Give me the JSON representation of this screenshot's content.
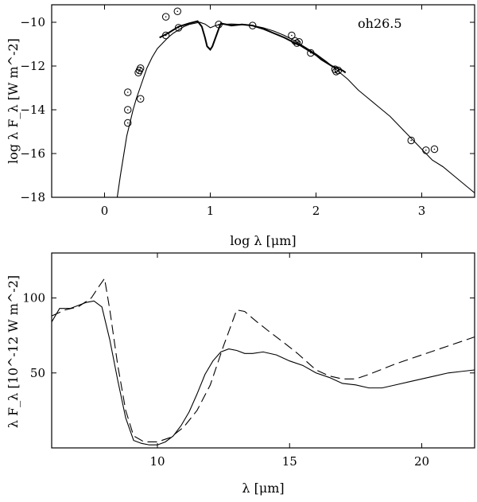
{
  "chart_data": [
    {
      "type": "scatter",
      "annotation": "oh26.5",
      "xlabel": "log λ [μm]",
      "ylabel": "log λ F_λ [W m^-2]",
      "xlim": [
        -0.5,
        3.5
      ],
      "ylim": [
        -18,
        -9.2
      ],
      "xticks": [
        0,
        1,
        2,
        3
      ],
      "yticks": [
        -18,
        -16,
        -14,
        -12,
        -10
      ],
      "xtick_labels": [
        "0",
        "1",
        "2",
        "3"
      ],
      "ytick_labels": [
        "−18",
        "−16",
        "−14",
        "−12",
        "−10"
      ],
      "series": [
        {
          "kind": "model-line",
          "x": [
            0.12,
            0.15,
            0.18,
            0.21,
            0.24,
            0.27,
            0.3,
            0.35,
            0.4,
            0.45,
            0.5,
            0.55,
            0.6,
            0.65,
            0.7,
            0.75,
            0.8,
            0.85,
            0.9,
            0.95,
            1.0,
            1.05,
            1.1,
            1.2,
            1.3,
            1.4,
            1.5,
            1.6,
            1.7,
            1.8,
            1.9,
            2.0,
            2.1,
            2.2,
            2.3,
            2.4,
            2.5,
            2.6,
            2.7,
            2.8,
            2.9,
            3.0,
            3.1,
            3.2,
            3.3,
            3.4,
            3.5
          ],
          "y": [
            -18.0,
            -17.0,
            -16.1,
            -15.2,
            -14.6,
            -14.0,
            -13.5,
            -12.8,
            -12.1,
            -11.6,
            -11.2,
            -10.95,
            -10.7,
            -10.5,
            -10.35,
            -10.2,
            -10.1,
            -10.05,
            -10.0,
            -10.08,
            -10.25,
            -10.15,
            -10.1,
            -10.08,
            -10.1,
            -10.15,
            -10.25,
            -10.4,
            -10.6,
            -10.85,
            -11.15,
            -11.45,
            -11.8,
            -12.2,
            -12.6,
            -13.1,
            -13.5,
            -13.9,
            -14.3,
            -14.8,
            -15.3,
            -15.8,
            -16.3,
            -16.6,
            -17.0,
            -17.4,
            -17.8
          ]
        },
        {
          "kind": "observed-spectrum",
          "x": [
            0.52,
            0.6,
            0.7,
            0.8,
            0.88,
            0.92,
            0.95,
            0.97,
            0.99,
            1.0,
            1.02,
            1.05,
            1.08,
            1.1,
            1.15,
            1.2,
            1.3,
            1.4,
            1.5,
            1.6,
            1.7,
            1.8,
            1.85,
            1.9,
            1.95,
            2.0,
            2.05,
            2.1,
            2.15,
            2.2,
            2.25,
            2.28
          ],
          "y": [
            -10.7,
            -10.5,
            -10.2,
            -10.05,
            -9.95,
            -10.2,
            -10.7,
            -11.1,
            -11.2,
            -11.25,
            -11.1,
            -10.7,
            -10.3,
            -10.05,
            -10.1,
            -10.15,
            -10.1,
            -10.15,
            -10.3,
            -10.5,
            -10.7,
            -10.95,
            -11.05,
            -11.2,
            -11.35,
            -11.5,
            -11.7,
            -11.85,
            -12.0,
            -12.1,
            -12.2,
            -12.3
          ]
        },
        {
          "kind": "photometry",
          "x": [
            0.22,
            0.22,
            0.22,
            0.32,
            0.33,
            0.34,
            0.34,
            0.58,
            0.58,
            0.69,
            0.7,
            1.08,
            1.4,
            1.77,
            1.8,
            1.82,
            1.84,
            1.95,
            2.18,
            2.19,
            2.21,
            2.9,
            3.04,
            3.12
          ],
          "y": [
            -13.2,
            -14.0,
            -14.6,
            -12.3,
            -12.2,
            -12.1,
            -13.5,
            -9.75,
            -10.6,
            -9.5,
            -10.25,
            -10.1,
            -10.15,
            -10.6,
            -10.85,
            -10.95,
            -10.9,
            -11.4,
            -12.15,
            -12.25,
            -12.2,
            -15.4,
            -15.85,
            -15.8
          ]
        }
      ]
    },
    {
      "type": "line",
      "xlabel": "λ [μm]",
      "ylabel": "λ F_λ [10^-12 W m^-2]",
      "xlim": [
        6,
        22
      ],
      "ylim": [
        0,
        130
      ],
      "xticks": [
        10,
        15,
        20
      ],
      "yticks": [
        50,
        100
      ],
      "xtick_labels": [
        "10",
        "15",
        "20"
      ],
      "ytick_labels": [
        "50",
        "100"
      ],
      "series": [
        {
          "kind": "observed",
          "x": [
            6.0,
            6.3,
            6.7,
            7.0,
            7.3,
            7.6,
            7.9,
            8.2,
            8.5,
            8.8,
            9.1,
            9.4,
            9.7,
            10.0,
            10.3,
            10.6,
            10.9,
            11.2,
            11.5,
            11.8,
            12.1,
            12.4,
            12.7,
            13.0,
            13.3,
            13.6,
            14.0,
            14.5,
            15.0,
            15.5,
            16.0,
            16.5,
            17.0,
            17.5,
            18.0,
            18.5,
            19.0,
            19.5,
            20.0,
            20.5,
            21.0,
            21.5,
            22.0
          ],
          "y": [
            84,
            93,
            93,
            95,
            97,
            98,
            94,
            72,
            45,
            20,
            5,
            3,
            2,
            2,
            4,
            8,
            15,
            24,
            36,
            49,
            58,
            64,
            66,
            65,
            63,
            63,
            64,
            62,
            58,
            55,
            50,
            47,
            43,
            42,
            40,
            40,
            42,
            44,
            46,
            48,
            50,
            51,
            52
          ]
        },
        {
          "kind": "model-dashed",
          "x": [
            6.0,
            6.5,
            7.0,
            7.5,
            7.8,
            8.0,
            8.2,
            8.5,
            8.8,
            9.1,
            9.5,
            10.0,
            10.5,
            11.0,
            11.5,
            12.0,
            12.5,
            13.0,
            13.3,
            13.7,
            14.2,
            14.8,
            15.3,
            16.0,
            16.5,
            17.0,
            17.5,
            18.0,
            19.0,
            20.0,
            21.0,
            22.0
          ],
          "y": [
            88,
            92,
            94,
            100,
            108,
            113,
            92,
            55,
            25,
            8,
            4,
            4,
            7,
            14,
            25,
            42,
            68,
            92,
            91,
            85,
            78,
            70,
            63,
            52,
            48,
            46,
            46,
            49,
            56,
            62,
            68,
            74
          ]
        }
      ]
    }
  ]
}
